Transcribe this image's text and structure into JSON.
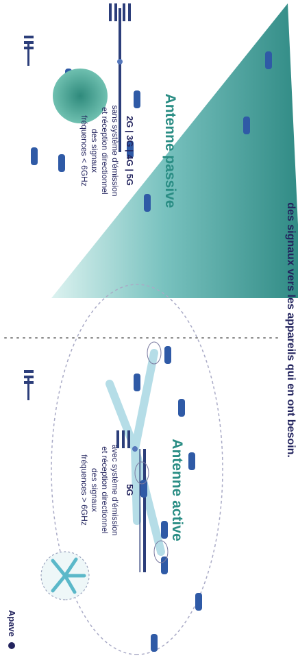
{
  "header": {
    "caption": "des signaux vers les appareils qui en ont besoin."
  },
  "passive": {
    "title": "Antenne passive",
    "generations": "2G | 3G | 4G | 5G",
    "description": "sans système d'émission\net réception directionnel\ndes signaux\nfréquences < 6GHz"
  },
  "active": {
    "title": "Antenne active",
    "generation": "5G",
    "description": "avec système d'émission\net réception directionnel\ndes signaux\nfréquences > 6GHz"
  },
  "brand": {
    "label": "Apave"
  },
  "colors": {
    "navy": "#23245e",
    "teal_title": "#2a8d84",
    "cone": "#2f8a84",
    "beam": "#a9d8e3",
    "users": "#2f5aa6"
  }
}
